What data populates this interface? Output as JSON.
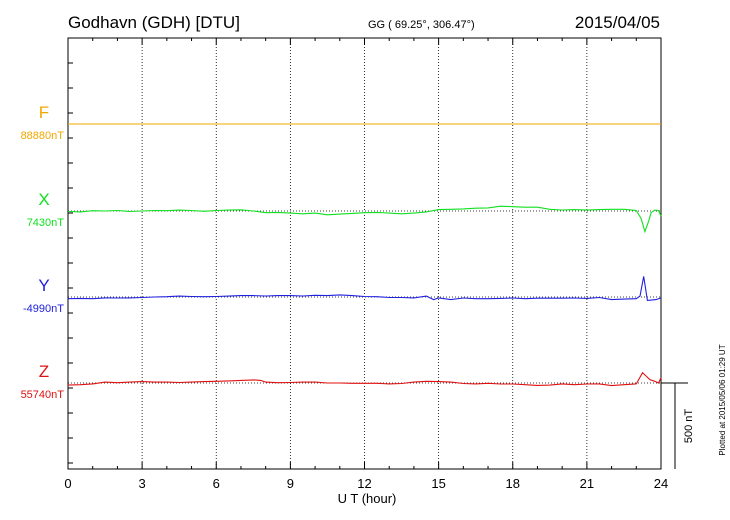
{
  "header": {
    "station": "Godhavn (GDH)  [DTU]",
    "coords": "GG ( 69.25°, 306.47°)",
    "date": "2015/04/05"
  },
  "footer": {
    "plotted": "Plotted at 2015/05/06 01:29 UT"
  },
  "chart_data": {
    "type": "line",
    "xlabel": "U T (hour)",
    "xlim": [
      0,
      24
    ],
    "xticks": [
      "0",
      "3",
      "6",
      "9",
      "12",
      "15",
      "18",
      "21",
      "24"
    ],
    "scale_bar": {
      "label": "500 nT",
      "nT": 500
    },
    "grid": true,
    "series": [
      {
        "name": "F",
        "baseline_label": "88880nT",
        "baseline_nT": 88880,
        "color": "#f0a800",
        "x": [
          0,
          24
        ],
        "y": [
          0,
          0
        ]
      },
      {
        "name": "X",
        "baseline_label": "7430nT",
        "baseline_nT": 7430,
        "color": "#10e020",
        "x": [
          0,
          0.5,
          1,
          1.5,
          2,
          2.5,
          3,
          3.5,
          4,
          4.5,
          5,
          5.5,
          6,
          6.5,
          7,
          7.5,
          8,
          8.5,
          9,
          9.5,
          10,
          10.5,
          11,
          11.5,
          12,
          12.5,
          13,
          13.5,
          14,
          14.5,
          15,
          15.5,
          16,
          16.5,
          17,
          17.5,
          18,
          18.5,
          19,
          19.5,
          20,
          20.5,
          21,
          21.5,
          22,
          22.5,
          23,
          23.2,
          23.35,
          23.5,
          23.6,
          23.75,
          23.9,
          24
        ],
        "y": [
          -3,
          -5,
          2,
          0,
          3,
          -3,
          0,
          3,
          2,
          5,
          3,
          -2,
          3,
          5,
          7,
          0,
          -10,
          -8,
          -12,
          -16,
          -12,
          -22,
          -18,
          -14,
          -10,
          -8,
          -12,
          -16,
          -12,
          -5,
          8,
          10,
          12,
          16,
          18,
          28,
          25,
          22,
          22,
          10,
          6,
          8,
          5,
          8,
          10,
          10,
          3,
          -45,
          -120,
          -60,
          -10,
          5,
          3,
          -30
        ]
      },
      {
        "name": "Y",
        "baseline_label": "-4990nT",
        "baseline_nT": -4990,
        "color": "#2020e0",
        "x": [
          0,
          0.5,
          1,
          1.5,
          2,
          2.5,
          3,
          3.5,
          4,
          4.5,
          5,
          5.5,
          6,
          6.5,
          7,
          7.5,
          8,
          8.5,
          9,
          9.5,
          10,
          10.5,
          11,
          11.5,
          12,
          12.5,
          13,
          13.5,
          14,
          14.5,
          14.8,
          15,
          15.5,
          16,
          16.5,
          17,
          17.5,
          18,
          18.5,
          19,
          19.5,
          20,
          20.5,
          21,
          21.5,
          22,
          22.5,
          23,
          23.15,
          23.3,
          23.45,
          23.6,
          23.8,
          24
        ],
        "y": [
          -10,
          -8,
          -10,
          -5,
          -6,
          -5,
          -3,
          0,
          2,
          5,
          3,
          2,
          3,
          5,
          8,
          8,
          6,
          8,
          8,
          6,
          10,
          8,
          12,
          8,
          3,
          2,
          -3,
          -3,
          -5,
          5,
          -15,
          -5,
          -15,
          -6,
          -10,
          -10,
          -8,
          -6,
          -10,
          -7,
          -7,
          -7,
          -6,
          -8,
          -3,
          -15,
          -12,
          -10,
          5,
          120,
          -20,
          -18,
          -15,
          -5
        ]
      },
      {
        "name": "Z",
        "baseline_label": "55740nT",
        "baseline_nT": 55740,
        "color": "#e01010",
        "x": [
          0,
          0.5,
          1,
          1.5,
          2,
          2.5,
          3,
          3.5,
          4,
          4.5,
          5,
          5.5,
          6,
          6.5,
          7,
          7.5,
          7.8,
          8,
          8.5,
          9,
          9.5,
          10,
          10.5,
          11,
          11.5,
          12,
          12.5,
          13,
          13.5,
          14,
          14.5,
          15,
          15.5,
          16,
          16.5,
          17,
          17.5,
          18,
          18.5,
          19,
          19.5,
          20,
          20.5,
          21,
          21.5,
          22,
          22.5,
          23,
          23.25,
          23.4,
          23.55,
          23.75,
          23.9,
          24
        ],
        "y": [
          -12,
          -10,
          -5,
          5,
          2,
          5,
          8,
          5,
          5,
          3,
          5,
          8,
          10,
          12,
          15,
          18,
          15,
          5,
          2,
          3,
          5,
          5,
          0,
          0,
          -2,
          -2,
          -2,
          -5,
          -3,
          5,
          10,
          8,
          5,
          -3,
          -5,
          -2,
          -6,
          -6,
          -10,
          -14,
          -12,
          -5,
          -10,
          -6,
          -5,
          -15,
          -10,
          -5,
          60,
          40,
          20,
          10,
          0,
          30
        ]
      }
    ]
  }
}
